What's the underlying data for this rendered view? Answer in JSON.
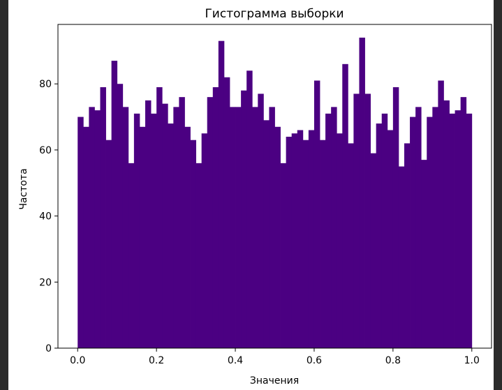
{
  "chart_data": {
    "type": "bar",
    "subtype": "histogram",
    "title": "Гистограмма выборки",
    "xlabel": "Значения",
    "ylabel": "Частота",
    "xlim": [
      -0.05,
      1.05
    ],
    "ylim": [
      0,
      98
    ],
    "xticks": [
      "0.0",
      "0.2",
      "0.4",
      "0.6",
      "0.8",
      "1.0"
    ],
    "xtick_values": [
      0.0,
      0.2,
      0.4,
      0.6,
      0.8,
      1.0
    ],
    "yticks": [
      "0",
      "20",
      "40",
      "60",
      "80"
    ],
    "ytick_values": [
      0,
      20,
      40,
      60,
      80
    ],
    "bin_range": [
      0,
      1
    ],
    "bar_color": "#4b0082",
    "grid": false,
    "values": [
      70,
      67,
      73,
      72,
      79,
      63,
      87,
      80,
      73,
      56,
      71,
      67,
      75,
      71,
      79,
      74,
      68,
      73,
      76,
      67,
      63,
      56,
      65,
      76,
      79,
      93,
      82,
      73,
      73,
      78,
      84,
      73,
      77,
      69,
      73,
      67,
      56,
      64,
      65,
      66,
      63,
      66,
      81,
      63,
      71,
      73,
      65,
      86,
      62,
      77,
      94,
      77,
      59,
      68,
      71,
      66,
      79,
      55,
      62,
      70,
      73,
      57,
      70,
      73,
      81,
      75,
      71,
      72,
      76,
      71
    ]
  }
}
